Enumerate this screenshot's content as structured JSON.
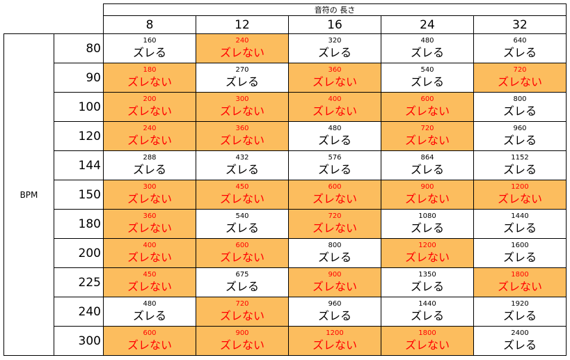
{
  "header": {
    "title": "音符の 長さ",
    "row_label": "BPM",
    "note_lengths": [
      "8",
      "12",
      "16",
      "24",
      "32"
    ]
  },
  "labels": {
    "ok": "ズレない",
    "ng": "ズレる"
  },
  "colors": {
    "ok_fill": "#fcbd5e",
    "ok_text": "#ff0000",
    "ng_fill": "#ffffff",
    "ng_text": "#000000"
  },
  "rows": [
    {
      "bpm": "80",
      "cells": [
        {
          "v": "160",
          "ok": false
        },
        {
          "v": "240",
          "ok": true
        },
        {
          "v": "320",
          "ok": false
        },
        {
          "v": "480",
          "ok": false
        },
        {
          "v": "640",
          "ok": false
        }
      ]
    },
    {
      "bpm": "90",
      "cells": [
        {
          "v": "180",
          "ok": true
        },
        {
          "v": "270",
          "ok": false
        },
        {
          "v": "360",
          "ok": true
        },
        {
          "v": "540",
          "ok": false
        },
        {
          "v": "720",
          "ok": true
        }
      ]
    },
    {
      "bpm": "100",
      "cells": [
        {
          "v": "200",
          "ok": true
        },
        {
          "v": "300",
          "ok": true
        },
        {
          "v": "400",
          "ok": true
        },
        {
          "v": "600",
          "ok": true
        },
        {
          "v": "800",
          "ok": false
        }
      ]
    },
    {
      "bpm": "120",
      "cells": [
        {
          "v": "240",
          "ok": true
        },
        {
          "v": "360",
          "ok": true
        },
        {
          "v": "480",
          "ok": false
        },
        {
          "v": "720",
          "ok": true
        },
        {
          "v": "960",
          "ok": false
        }
      ]
    },
    {
      "bpm": "144",
      "cells": [
        {
          "v": "288",
          "ok": false
        },
        {
          "v": "432",
          "ok": false
        },
        {
          "v": "576",
          "ok": false
        },
        {
          "v": "864",
          "ok": false
        },
        {
          "v": "1152",
          "ok": false
        }
      ]
    },
    {
      "bpm": "150",
      "cells": [
        {
          "v": "300",
          "ok": true
        },
        {
          "v": "450",
          "ok": true
        },
        {
          "v": "600",
          "ok": true
        },
        {
          "v": "900",
          "ok": true
        },
        {
          "v": "1200",
          "ok": true
        }
      ]
    },
    {
      "bpm": "180",
      "cells": [
        {
          "v": "360",
          "ok": true
        },
        {
          "v": "540",
          "ok": false
        },
        {
          "v": "720",
          "ok": true
        },
        {
          "v": "1080",
          "ok": false
        },
        {
          "v": "1440",
          "ok": false
        }
      ]
    },
    {
      "bpm": "200",
      "cells": [
        {
          "v": "400",
          "ok": true
        },
        {
          "v": "600",
          "ok": true
        },
        {
          "v": "800",
          "ok": false
        },
        {
          "v": "1200",
          "ok": true
        },
        {
          "v": "1600",
          "ok": false
        }
      ]
    },
    {
      "bpm": "225",
      "cells": [
        {
          "v": "450",
          "ok": true
        },
        {
          "v": "675",
          "ok": false
        },
        {
          "v": "900",
          "ok": true
        },
        {
          "v": "1350",
          "ok": false
        },
        {
          "v": "1800",
          "ok": true
        }
      ]
    },
    {
      "bpm": "240",
      "cells": [
        {
          "v": "480",
          "ok": false
        },
        {
          "v": "720",
          "ok": true
        },
        {
          "v": "960",
          "ok": false
        },
        {
          "v": "1440",
          "ok": false
        },
        {
          "v": "1920",
          "ok": false
        }
      ]
    },
    {
      "bpm": "300",
      "cells": [
        {
          "v": "600",
          "ok": true
        },
        {
          "v": "900",
          "ok": true
        },
        {
          "v": "1200",
          "ok": true
        },
        {
          "v": "1800",
          "ok": true
        },
        {
          "v": "2400",
          "ok": false
        }
      ]
    }
  ]
}
